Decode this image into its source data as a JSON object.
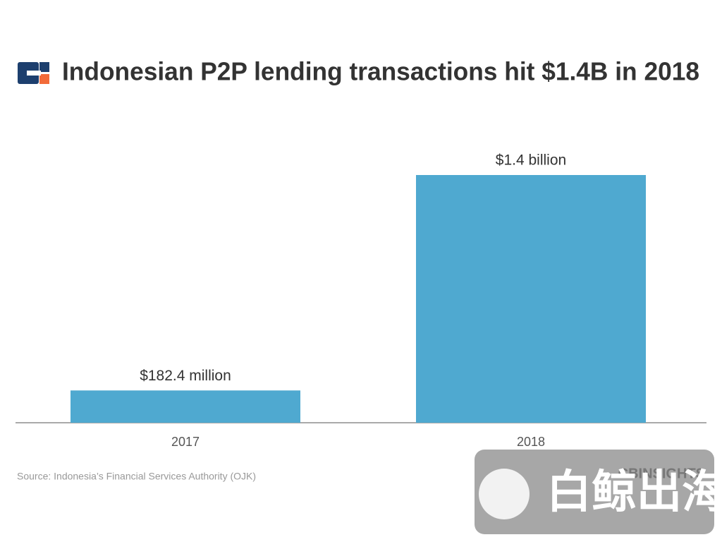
{
  "chart_data": {
    "type": "bar",
    "title": "Indonesian P2P lending transactions hit $1.4B in 2018",
    "categories": [
      "2017",
      "2018"
    ],
    "values": [
      182.4,
      1400
    ],
    "value_labels": [
      "$182.4 million",
      "$1.4 billion"
    ],
    "color": "#4fa9d0",
    "source": "Source: Indonesia’s Financial Services Authority (OJK)",
    "brand": "CBINSIGHTS",
    "watermark": "白鲸出海"
  }
}
